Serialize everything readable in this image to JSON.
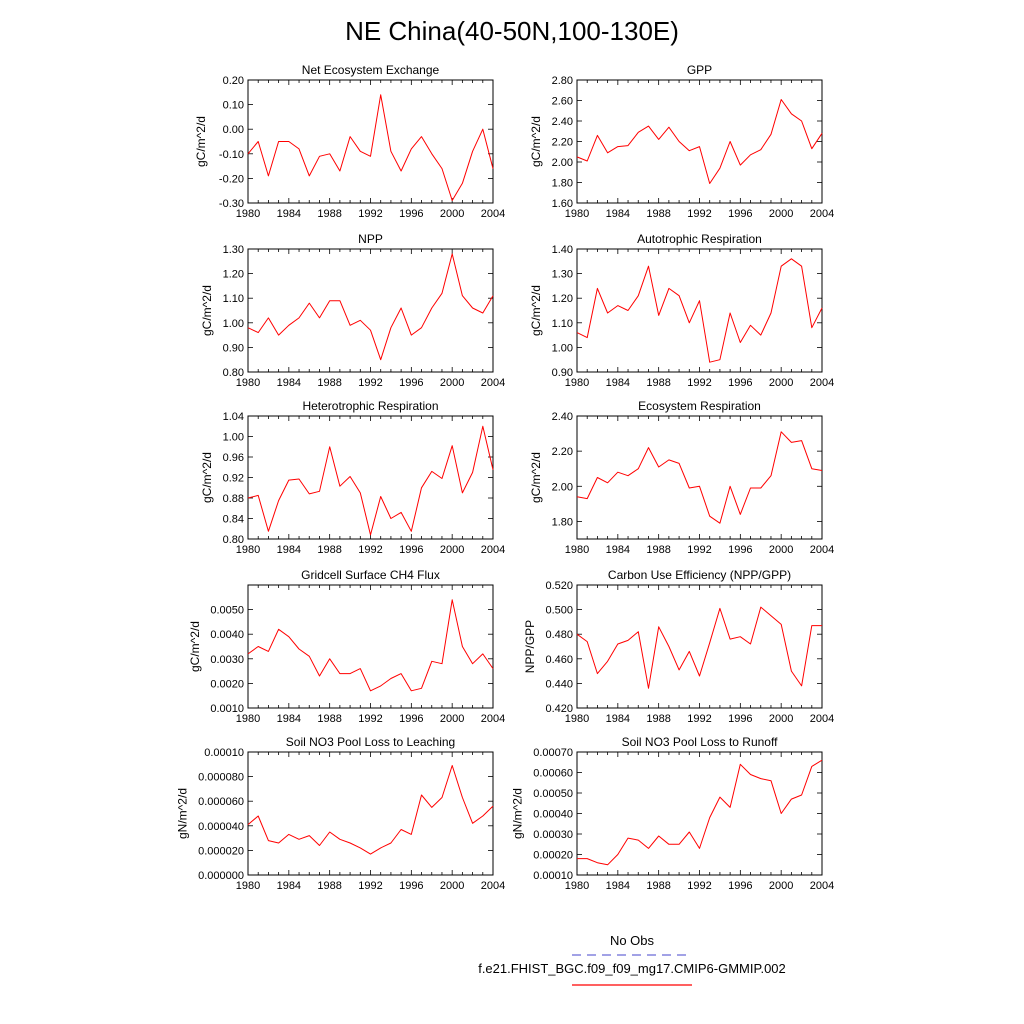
{
  "figure": {
    "title": "NE China(40-50N,100-130E)",
    "legend": {
      "obs_label": "No Obs",
      "obs_color": "#6b6bd6",
      "model_label": "f.e21.FHIST_BGC.f09_f09_mg17.CMIP6-GMMIP.002",
      "model_color": "#ff0000"
    }
  },
  "chart_data": [
    {
      "type": "line",
      "title": "Net Ecosystem Exchange",
      "ylabel": "gC/m^2/d",
      "xlim": [
        1980,
        2004
      ],
      "xticks": [
        1980,
        1984,
        1988,
        1992,
        1996,
        2000,
        2004
      ],
      "ylim": [
        -0.3,
        0.2
      ],
      "yticks": [
        -0.3,
        -0.2,
        -0.1,
        0.0,
        0.1,
        0.2
      ],
      "ytick_labels": [
        "-0.30",
        "-0.20",
        "-0.10",
        "0.00",
        "0.10",
        "0.20"
      ],
      "x": [
        1980,
        1981,
        1982,
        1983,
        1984,
        1985,
        1986,
        1987,
        1988,
        1989,
        1990,
        1991,
        1992,
        1993,
        1994,
        1995,
        1996,
        1997,
        1998,
        1999,
        2000,
        2001,
        2002,
        2003,
        2004
      ],
      "series": [
        {
          "name": "f.e21.FHIST_BGC.f09_f09_mg17.CMIP6-GMMIP.002",
          "values": [
            -0.1,
            -0.05,
            -0.19,
            -0.05,
            -0.05,
            -0.08,
            -0.19,
            -0.11,
            -0.1,
            -0.17,
            -0.03,
            -0.09,
            -0.11,
            0.14,
            -0.09,
            -0.17,
            -0.08,
            -0.03,
            -0.1,
            -0.16,
            -0.29,
            -0.22,
            -0.09,
            0.0,
            -0.16
          ]
        }
      ]
    },
    {
      "type": "line",
      "title": "GPP",
      "ylabel": "gC/m^2/d",
      "xlim": [
        1980,
        2004
      ],
      "xticks": [
        1980,
        1984,
        1988,
        1992,
        1996,
        2000,
        2004
      ],
      "ylim": [
        1.6,
        2.8
      ],
      "yticks": [
        1.6,
        1.8,
        2.0,
        2.2,
        2.4,
        2.6,
        2.8
      ],
      "ytick_labels": [
        "1.60",
        "1.80",
        "2.00",
        "2.20",
        "2.40",
        "2.60",
        "2.80"
      ],
      "x": [
        1980,
        1981,
        1982,
        1983,
        1984,
        1985,
        1986,
        1987,
        1988,
        1989,
        1990,
        1991,
        1992,
        1993,
        1994,
        1995,
        1996,
        1997,
        1998,
        1999,
        2000,
        2001,
        2002,
        2003,
        2004
      ],
      "series": [
        {
          "name": "f.e21.FHIST_BGC.f09_f09_mg17.CMIP6-GMMIP.002",
          "values": [
            2.05,
            2.01,
            2.26,
            2.09,
            2.15,
            2.16,
            2.29,
            2.35,
            2.22,
            2.34,
            2.2,
            2.11,
            2.15,
            1.79,
            1.94,
            2.2,
            1.97,
            2.07,
            2.12,
            2.27,
            2.61,
            2.47,
            2.4,
            2.13,
            2.28
          ]
        }
      ]
    },
    {
      "type": "line",
      "title": "NPP",
      "ylabel": "gC/m^2/d",
      "xlim": [
        1980,
        2004
      ],
      "xticks": [
        1980,
        1984,
        1988,
        1992,
        1996,
        2000,
        2004
      ],
      "ylim": [
        0.8,
        1.3
      ],
      "yticks": [
        0.8,
        0.9,
        1.0,
        1.1,
        1.2,
        1.3
      ],
      "ytick_labels": [
        "0.80",
        "0.90",
        "1.00",
        "1.10",
        "1.20",
        "1.30"
      ],
      "x": [
        1980,
        1981,
        1982,
        1983,
        1984,
        1985,
        1986,
        1987,
        1988,
        1989,
        1990,
        1991,
        1992,
        1993,
        1994,
        1995,
        1996,
        1997,
        1998,
        1999,
        2000,
        2001,
        2002,
        2003,
        2004
      ],
      "series": [
        {
          "name": "f.e21.FHIST_BGC.f09_f09_mg17.CMIP6-GMMIP.002",
          "values": [
            0.98,
            0.96,
            1.02,
            0.95,
            0.99,
            1.02,
            1.08,
            1.02,
            1.09,
            1.09,
            0.99,
            1.01,
            0.97,
            0.85,
            0.98,
            1.06,
            0.95,
            0.98,
            1.06,
            1.12,
            1.28,
            1.11,
            1.06,
            1.04,
            1.11
          ]
        }
      ]
    },
    {
      "type": "line",
      "title": "Autotrophic Respiration",
      "ylabel": "gC/m^2/d",
      "xlim": [
        1980,
        2004
      ],
      "xticks": [
        1980,
        1984,
        1988,
        1992,
        1996,
        2000,
        2004
      ],
      "ylim": [
        0.9,
        1.4
      ],
      "yticks": [
        0.9,
        1.0,
        1.1,
        1.2,
        1.3,
        1.4
      ],
      "ytick_labels": [
        "0.90",
        "1.00",
        "1.10",
        "1.20",
        "1.30",
        "1.40"
      ],
      "x": [
        1980,
        1981,
        1982,
        1983,
        1984,
        1985,
        1986,
        1987,
        1988,
        1989,
        1990,
        1991,
        1992,
        1993,
        1994,
        1995,
        1996,
        1997,
        1998,
        1999,
        2000,
        2001,
        2002,
        2003,
        2004
      ],
      "series": [
        {
          "name": "f.e21.FHIST_BGC.f09_f09_mg17.CMIP6-GMMIP.002",
          "values": [
            1.06,
            1.04,
            1.24,
            1.14,
            1.17,
            1.15,
            1.21,
            1.33,
            1.13,
            1.24,
            1.21,
            1.1,
            1.19,
            0.94,
            0.95,
            1.14,
            1.02,
            1.09,
            1.05,
            1.14,
            1.33,
            1.36,
            1.33,
            1.08,
            1.16
          ]
        }
      ]
    },
    {
      "type": "line",
      "title": "Heterotrophic Respiration",
      "ylabel": "gC/m^2/d",
      "xlim": [
        1980,
        2004
      ],
      "xticks": [
        1980,
        1984,
        1988,
        1992,
        1996,
        2000,
        2004
      ],
      "ylim": [
        0.8,
        1.04
      ],
      "yticks": [
        0.8,
        0.84,
        0.88,
        0.92,
        0.96,
        1.0,
        1.04
      ],
      "ytick_labels": [
        "0.80",
        "0.84",
        "0.88",
        "0.92",
        "0.96",
        "1.00",
        "1.04"
      ],
      "x": [
        1980,
        1981,
        1982,
        1983,
        1984,
        1985,
        1986,
        1987,
        1988,
        1989,
        1990,
        1991,
        1992,
        1993,
        1994,
        1995,
        1996,
        1997,
        1998,
        1999,
        2000,
        2001,
        2002,
        2003,
        2004
      ],
      "series": [
        {
          "name": "f.e21.FHIST_BGC.f09_f09_mg17.CMIP6-GMMIP.002",
          "values": [
            0.88,
            0.885,
            0.815,
            0.875,
            0.915,
            0.917,
            0.888,
            0.893,
            0.98,
            0.903,
            0.922,
            0.89,
            0.808,
            0.883,
            0.84,
            0.852,
            0.815,
            0.9,
            0.932,
            0.918,
            0.982,
            0.89,
            0.93,
            1.02,
            0.935
          ]
        }
      ]
    },
    {
      "type": "line",
      "title": "Ecosystem Respiration",
      "ylabel": "gC/m^2/d",
      "xlim": [
        1980,
        2004
      ],
      "xticks": [
        1980,
        1984,
        1988,
        1992,
        1996,
        2000,
        2004
      ],
      "ylim": [
        1.7,
        2.4
      ],
      "yticks": [
        1.8,
        2.0,
        2.2,
        2.4
      ],
      "ytick_labels": [
        "1.80",
        "2.00",
        "2.20",
        "2.40"
      ],
      "x": [
        1980,
        1981,
        1982,
        1983,
        1984,
        1985,
        1986,
        1987,
        1988,
        1989,
        1990,
        1991,
        1992,
        1993,
        1994,
        1995,
        1996,
        1997,
        1998,
        1999,
        2000,
        2001,
        2002,
        2003,
        2004
      ],
      "series": [
        {
          "name": "f.e21.FHIST_BGC.f09_f09_mg17.CMIP6-GMMIP.002",
          "values": [
            1.94,
            1.93,
            2.05,
            2.02,
            2.08,
            2.06,
            2.1,
            2.22,
            2.11,
            2.15,
            2.13,
            1.99,
            2.0,
            1.83,
            1.79,
            2.0,
            1.84,
            1.99,
            1.99,
            2.06,
            2.31,
            2.25,
            2.26,
            2.1,
            2.09
          ]
        }
      ]
    },
    {
      "type": "line",
      "title": "Gridcell Surface CH4 Flux",
      "ylabel": "gC/m^2/d",
      "xlim": [
        1980,
        2004
      ],
      "xticks": [
        1980,
        1984,
        1988,
        1992,
        1996,
        2000,
        2004
      ],
      "ylim": [
        0.001,
        0.006
      ],
      "yticks": [
        0.001,
        0.002,
        0.003,
        0.004,
        0.005
      ],
      "ytick_labels": [
        "0.0010",
        "0.0020",
        "0.0030",
        "0.0040",
        "0.0050"
      ],
      "x": [
        1980,
        1981,
        1982,
        1983,
        1984,
        1985,
        1986,
        1987,
        1988,
        1989,
        1990,
        1991,
        1992,
        1993,
        1994,
        1995,
        1996,
        1997,
        1998,
        1999,
        2000,
        2001,
        2002,
        2003,
        2004
      ],
      "series": [
        {
          "name": "f.e21.FHIST_BGC.f09_f09_mg17.CMIP6-GMMIP.002",
          "values": [
            0.0032,
            0.0035,
            0.0033,
            0.0042,
            0.0039,
            0.0034,
            0.0031,
            0.0023,
            0.003,
            0.0024,
            0.0024,
            0.0026,
            0.0017,
            0.0019,
            0.0022,
            0.0024,
            0.0017,
            0.0018,
            0.0029,
            0.0028,
            0.0054,
            0.0035,
            0.0028,
            0.0032,
            0.0026
          ]
        }
      ]
    },
    {
      "type": "line",
      "title": "Carbon Use Efficiency (NPP/GPP)",
      "ylabel": "NPP/GPP",
      "xlim": [
        1980,
        2004
      ],
      "xticks": [
        1980,
        1984,
        1988,
        1992,
        1996,
        2000,
        2004
      ],
      "ylim": [
        0.42,
        0.52
      ],
      "yticks": [
        0.42,
        0.44,
        0.46,
        0.48,
        0.5,
        0.52
      ],
      "ytick_labels": [
        "0.420",
        "0.440",
        "0.460",
        "0.480",
        "0.500",
        "0.520"
      ],
      "x": [
        1980,
        1981,
        1982,
        1983,
        1984,
        1985,
        1986,
        1987,
        1988,
        1989,
        1990,
        1991,
        1992,
        1993,
        1994,
        1995,
        1996,
        1997,
        1998,
        1999,
        2000,
        2001,
        2002,
        2003,
        2004
      ],
      "series": [
        {
          "name": "f.e21.FHIST_BGC.f09_f09_mg17.CMIP6-GMMIP.002",
          "values": [
            0.48,
            0.474,
            0.448,
            0.458,
            0.472,
            0.475,
            0.482,
            0.436,
            0.486,
            0.47,
            0.451,
            0.466,
            0.446,
            0.473,
            0.501,
            0.476,
            0.478,
            0.472,
            0.502,
            0.495,
            0.488,
            0.45,
            0.438,
            0.487,
            0.487
          ]
        }
      ]
    },
    {
      "type": "line",
      "title": "Soil NO3 Pool Loss to Leaching",
      "ylabel": "gN/m^2/d",
      "xlim": [
        1980,
        2004
      ],
      "xticks": [
        1980,
        1984,
        1988,
        1992,
        1996,
        2000,
        2004
      ],
      "ylim": [
        0.0,
        0.0001
      ],
      "yticks": [
        0.0,
        2e-05,
        4e-05,
        6e-05,
        8e-05,
        0.0001
      ],
      "ytick_labels": [
        "0.000000",
        "0.000020",
        "0.000040",
        "0.000060",
        "0.000080",
        "0.00010"
      ],
      "x": [
        1980,
        1981,
        1982,
        1983,
        1984,
        1985,
        1986,
        1987,
        1988,
        1989,
        1990,
        1991,
        1992,
        1993,
        1994,
        1995,
        1996,
        1997,
        1998,
        1999,
        2000,
        2001,
        2002,
        2003,
        2004
      ],
      "series": [
        {
          "name": "f.e21.FHIST_BGC.f09_f09_mg17.CMIP6-GMMIP.002",
          "values": [
            4.1e-05,
            4.8e-05,
            2.8e-05,
            2.6e-05,
            3.3e-05,
            2.9e-05,
            3.2e-05,
            2.4e-05,
            3.5e-05,
            2.9e-05,
            2.6e-05,
            2.2e-05,
            1.7e-05,
            2.2e-05,
            2.6e-05,
            3.7e-05,
            3.3e-05,
            6.5e-05,
            5.5e-05,
            6.3e-05,
            8.9e-05,
            6.3e-05,
            4.2e-05,
            4.8e-05,
            5.6e-05
          ]
        }
      ]
    },
    {
      "type": "line",
      "title": "Soil NO3 Pool Loss to Runoff",
      "ylabel": "gN/m^2/d",
      "xlim": [
        1980,
        2004
      ],
      "xticks": [
        1980,
        1984,
        1988,
        1992,
        1996,
        2000,
        2004
      ],
      "ylim": [
        0.0001,
        0.0007
      ],
      "yticks": [
        0.0001,
        0.0002,
        0.0003,
        0.0004,
        0.0005,
        0.0006,
        0.0007
      ],
      "ytick_labels": [
        "0.00010",
        "0.00020",
        "0.00030",
        "0.00040",
        "0.00050",
        "0.00060",
        "0.00070"
      ],
      "x": [
        1980,
        1981,
        1982,
        1983,
        1984,
        1985,
        1986,
        1987,
        1988,
        1989,
        1990,
        1991,
        1992,
        1993,
        1994,
        1995,
        1996,
        1997,
        1998,
        1999,
        2000,
        2001,
        2002,
        2003,
        2004
      ],
      "series": [
        {
          "name": "f.e21.FHIST_BGC.f09_f09_mg17.CMIP6-GMMIP.002",
          "values": [
            0.00018,
            0.00018,
            0.00016,
            0.00015,
            0.0002,
            0.00028,
            0.00027,
            0.00023,
            0.00029,
            0.00025,
            0.00025,
            0.00031,
            0.00023,
            0.00038,
            0.00048,
            0.00043,
            0.00064,
            0.00059,
            0.00057,
            0.00056,
            0.0004,
            0.00047,
            0.00049,
            0.00063,
            0.00066
          ]
        }
      ]
    }
  ]
}
